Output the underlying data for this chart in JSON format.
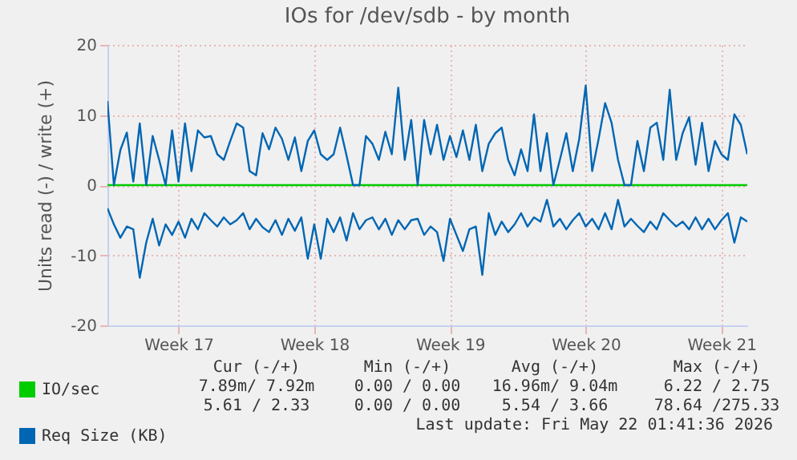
{
  "chart_data": {
    "type": "line",
    "title": "IOs for /dev/sdb - by month",
    "ylabel": "Units read (-) / write (+)",
    "categories": [
      null,
      null,
      null,
      null,
      null,
      null,
      null,
      null,
      null,
      null,
      null,
      "Week 17",
      null,
      null,
      null,
      null,
      null,
      null,
      null,
      null,
      null,
      null,
      null,
      null,
      null,
      null,
      null,
      null,
      null,
      null,
      null,
      null,
      "Week 18",
      null,
      null,
      null,
      null,
      null,
      null,
      null,
      null,
      null,
      null,
      null,
      null,
      null,
      null,
      null,
      null,
      null,
      null,
      null,
      null,
      "Week 19",
      null,
      null,
      null,
      null,
      null,
      null,
      null,
      null,
      null,
      null,
      null,
      null,
      null,
      null,
      null,
      null,
      null,
      null,
      null,
      null,
      "Week 20",
      null,
      null,
      null,
      null,
      null,
      null,
      null,
      null,
      null,
      null,
      null,
      null,
      null,
      null,
      null,
      null,
      null,
      null,
      null,
      null,
      "Week 21",
      null,
      null,
      null,
      null
    ],
    "ylim": [
      -20,
      20
    ],
    "yticks": [
      -20,
      -10,
      0,
      10,
      20
    ],
    "grid": true,
    "legend": "bottom left",
    "series": [
      {
        "name": "IO/sec",
        "color": "#00cc00",
        "values": [
          0,
          0,
          0,
          0,
          0,
          0,
          0,
          0,
          0,
          0,
          0,
          0,
          0,
          0,
          0,
          0,
          0,
          0,
          0,
          0,
          0,
          0,
          0,
          0,
          0,
          0,
          0,
          0,
          0,
          0,
          0,
          0,
          0,
          0,
          0,
          0,
          0,
          0,
          0,
          0,
          0,
          0,
          0,
          0,
          0,
          0,
          0,
          0,
          0,
          0,
          0,
          0,
          0,
          0,
          0,
          0,
          0,
          0,
          0,
          0,
          0,
          0,
          0,
          0,
          0,
          0,
          0,
          0,
          0,
          0,
          0,
          0,
          0,
          0,
          0,
          0,
          0,
          0,
          0,
          0,
          0,
          0,
          0,
          0,
          0,
          0,
          0,
          0,
          0,
          0,
          0,
          0,
          0,
          0,
          0,
          0,
          0,
          0,
          0,
          0
        ]
      },
      {
        "name": "Req Size (KB)",
        "color": "#0066b3",
        "values": [
          12,
          0,
          5,
          7.5,
          0.5,
          8.8,
          0,
          7,
          3.6,
          0,
          7.8,
          0.5,
          8.8,
          2,
          7.8,
          6.8,
          7,
          4.4,
          3.6,
          6.3,
          8.8,
          8.2,
          2,
          1.4,
          7.4,
          5.1,
          8.2,
          6.6,
          3.6,
          6.8,
          2,
          6.3,
          7.8,
          4.4,
          3.6,
          4.4,
          8.2,
          4.2,
          0,
          0,
          7,
          5.9,
          3.6,
          7.6,
          4.4,
          13.9,
          3.6,
          9.3,
          0,
          9.3,
          4.4,
          8.6,
          3.6,
          7,
          4,
          7.8,
          3.6,
          8.6,
          2,
          5.9,
          7.4,
          8.2,
          3.6,
          1.4,
          5.1,
          2,
          10.1,
          2,
          7.4,
          0,
          3.6,
          7.4,
          2,
          6.6,
          14.2,
          2,
          6.6,
          11.7,
          8.9,
          3.6,
          0,
          0,
          6.3,
          2,
          8.2,
          8.9,
          3.6,
          13.6,
          3.6,
          7.4,
          9.7,
          2.9,
          8.9,
          2,
          6.3,
          4.4,
          3.6,
          10.1,
          8.6,
          4.4
        ]
      },
      {
        "color": "#0066b3",
        "values": [
          -3.3,
          -5.6,
          -7.5,
          -5.9,
          -6.3,
          -13.2,
          -8.2,
          -4.8,
          -8.6,
          -5.6,
          -7.1,
          -5.2,
          -7.5,
          -4.8,
          -6.3,
          -4,
          -5,
          -5.9,
          -4.6,
          -5.6,
          -5,
          -4,
          -6.3,
          -4.8,
          -6,
          -6.7,
          -5,
          -7.1,
          -4.8,
          -6.5,
          -4.6,
          -10.5,
          -5.6,
          -10.5,
          -4.8,
          -6.7,
          -4.6,
          -7.9,
          -4,
          -6.3,
          -5,
          -4.6,
          -6.3,
          -4.8,
          -7.1,
          -5,
          -6.3,
          -5,
          -4.8,
          -7.1,
          -5.9,
          -6.7,
          -10.8,
          -4.8,
          -7.1,
          -9.4,
          -6.3,
          -5.9,
          -12.8,
          -4,
          -7.1,
          -5.2,
          -6.7,
          -5.6,
          -4,
          -5.9,
          -4.6,
          -5.2,
          -2.1,
          -5.9,
          -4.8,
          -6.3,
          -5,
          -4,
          -5.9,
          -4.8,
          -6.3,
          -4,
          -6.3,
          -2.1,
          -5.9,
          -4.8,
          -5.8,
          -6.7,
          -5.2,
          -6.3,
          -4,
          -5,
          -5.9,
          -5.2,
          -6.3,
          -4.6,
          -6.3,
          -4.8,
          -6.3,
          -5,
          -4,
          -8.2,
          -4.6,
          -5.2
        ]
      }
    ],
    "annotations": [
      "Cur (-/+)",
      "Min (-/+)",
      "Avg (-/+)",
      "Max (-/+)",
      "7.89m/ 7.92m",
      "0.00 / 0.00",
      "16.96m/ 9.04m",
      "6.22 / 2.75",
      "5.61 / 2.33",
      "0.00 / 0.00",
      "5.54 / 3.66",
      "78.64 /275.33",
      "Last update: Fri May 22 01:41:36 2026"
    ]
  }
}
